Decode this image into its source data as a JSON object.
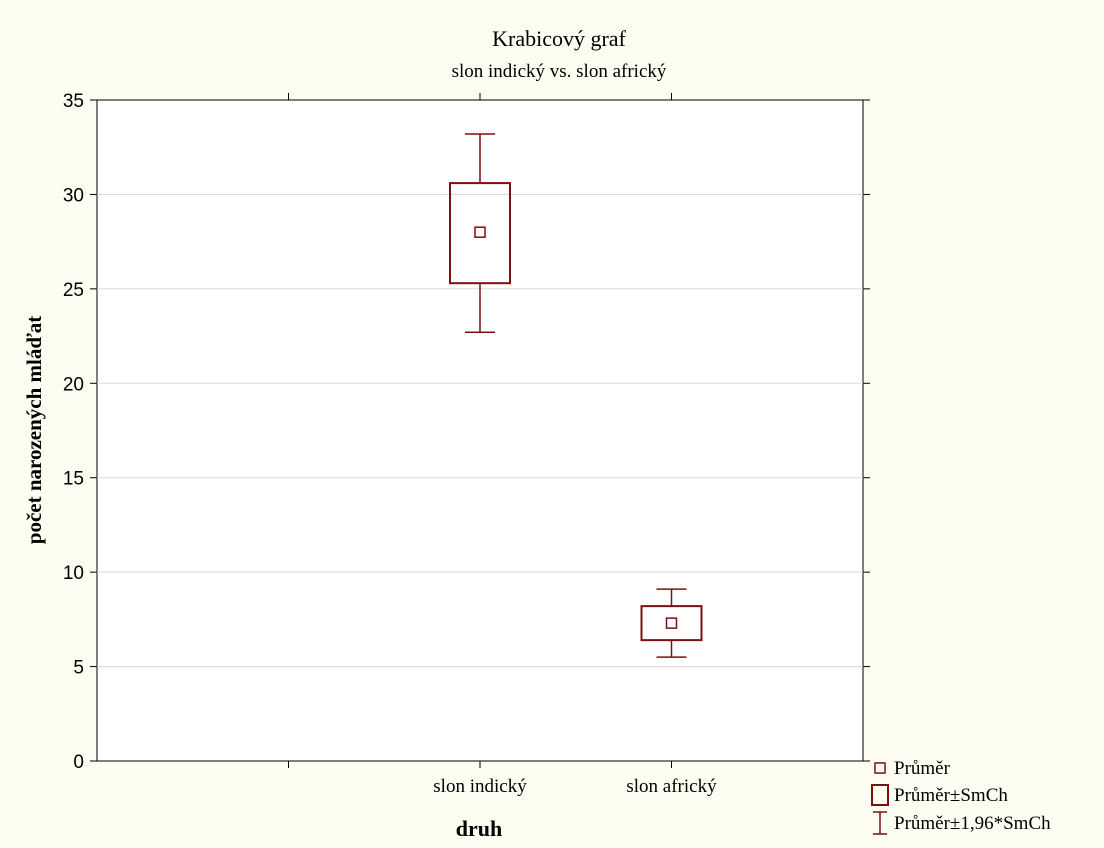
{
  "chart_data": {
    "type": "box",
    "title": "Krabicový graf",
    "subtitle": "slon indický vs. slon africký",
    "xlabel": "druh",
    "ylabel": "počet narozených mláďat",
    "categories": [
      "slon indický",
      "slon africký"
    ],
    "ylim": [
      0,
      35
    ],
    "yticks": [
      0,
      5,
      10,
      15,
      20,
      25,
      30,
      35
    ],
    "grid": true,
    "boxes": [
      {
        "category": "slon indický",
        "mean": 28.0,
        "box_low": 25.3,
        "box_high": 30.6,
        "whisker_low": 22.7,
        "whisker_high": 33.2
      },
      {
        "category": "slon africký",
        "mean": 7.3,
        "box_low": 6.4,
        "box_high": 8.2,
        "whisker_low": 5.5,
        "whisker_high": 9.1
      }
    ],
    "legend": {
      "position": "bottom-right",
      "items": [
        {
          "label": "Průměr",
          "symbol": "mean-marker"
        },
        {
          "label": "Průměr±SmCh",
          "symbol": "box"
        },
        {
          "label": "Průměr±1,96*SmCh",
          "symbol": "whisker"
        }
      ]
    },
    "colors": {
      "series": "#7a1010",
      "axis": "#000000",
      "grid": "#d8d8d8",
      "plot_bg": "#ffffff",
      "page_bg": "#fdfdf1"
    }
  }
}
